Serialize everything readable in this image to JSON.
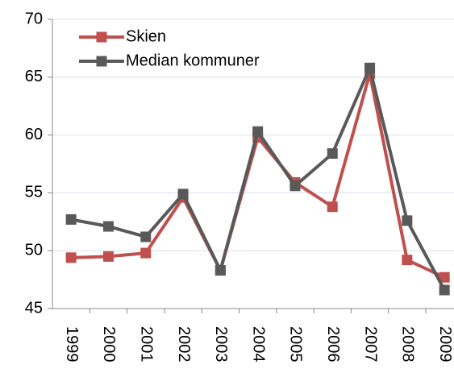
{
  "chart_data": {
    "type": "line",
    "categories": [
      "1999",
      "2000",
      "2001",
      "2002",
      "2003",
      "2004",
      "2005",
      "2006",
      "2007",
      "2008",
      "2009"
    ],
    "series": [
      {
        "name": "Skien",
        "color": "#c0504d",
        "values": [
          49.4,
          49.5,
          49.8,
          54.6,
          48.3,
          59.8,
          55.9,
          53.8,
          65.3,
          49.2,
          47.7
        ]
      },
      {
        "name": "Median kommuner",
        "color": "#595959",
        "values": [
          52.7,
          52.1,
          51.2,
          54.9,
          48.3,
          60.3,
          55.6,
          58.4,
          65.8,
          52.6,
          46.6
        ]
      }
    ],
    "ylim": [
      45,
      70
    ],
    "yticks": [
      45,
      50,
      55,
      60,
      65,
      70
    ],
    "grid": true,
    "legend": "top-left"
  }
}
